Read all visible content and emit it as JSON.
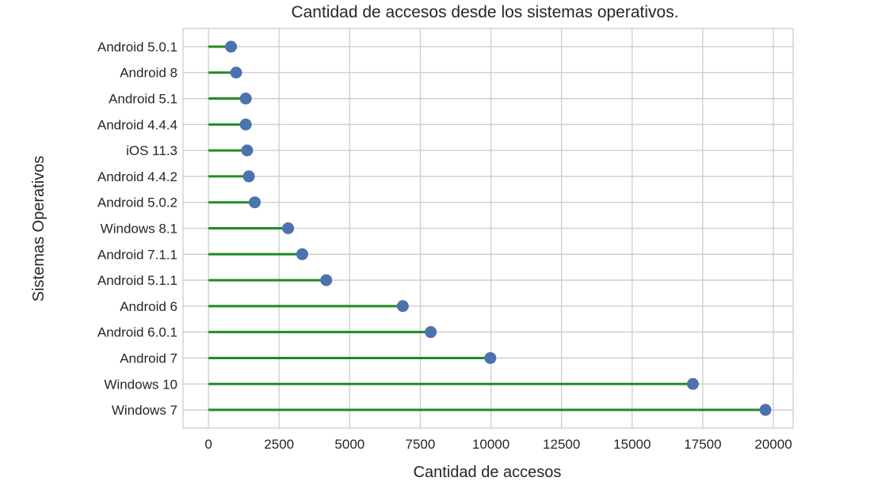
{
  "chart_data": {
    "type": "lollipop",
    "title": "Cantidad de accesos desde los sistemas operativos.",
    "xlabel": "Cantidad de accesos",
    "ylabel": "Sistemas Operativos",
    "xlim": [
      -900,
      20700
    ],
    "xticks": [
      0,
      2500,
      5000,
      7500,
      10000,
      12500,
      15000,
      17500,
      20000
    ],
    "grid": true,
    "orientation": "horizontal",
    "colors": {
      "stem": "#228b22",
      "marker": "#4c72b0",
      "grid": "#cccccc",
      "text": "#262626"
    },
    "categories": [
      "Android 5.0.1",
      "Android 8",
      "Android 5.1",
      "Android 4.4.4",
      "iOS 11.3",
      "Android 4.4.2",
      "Android 5.0.2",
      "Windows 8.1",
      "Android 7.1.1",
      "Android 5.1.1",
      "Android 6",
      "Android 6.0.1",
      "Android 7",
      "Windows 10",
      "Windows 7"
    ],
    "values": [
      800,
      980,
      1320,
      1320,
      1370,
      1430,
      1640,
      2820,
      3320,
      4170,
      6880,
      7870,
      9980,
      17150,
      19720
    ]
  }
}
